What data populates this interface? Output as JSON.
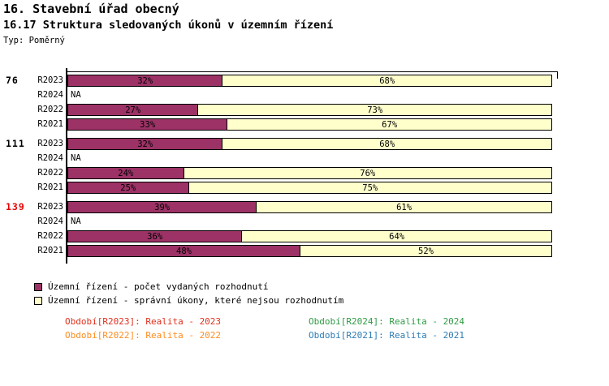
{
  "header": {
    "title_line1": "16. Stavební úřad obecný",
    "title_line2": "16.17 Struktura sledovaných úkonů v územním řízení",
    "type_label": "Typ: Poměrný"
  },
  "chart_data": {
    "type": "bar",
    "orientation": "horizontal",
    "stacked": true,
    "unit": "%",
    "xlim": [
      0,
      100
    ],
    "grid": false,
    "row_order": [
      "R2023",
      "R2024",
      "R2022",
      "R2021"
    ],
    "series": [
      {
        "name": "Územní řízení - počet vydaných rozhodnutí",
        "color": "#9c3266"
      },
      {
        "name": "Územní řízení - správní úkony, které nejsou rozhodnutím",
        "color": "#ffffcc"
      }
    ],
    "groups": [
      {
        "total": "76",
        "total_color": "#000000",
        "rows": [
          {
            "label": "R2023",
            "values": [
              32,
              68
            ]
          },
          {
            "label": "R2024",
            "na": "NA"
          },
          {
            "label": "R2022",
            "values": [
              27,
              73
            ]
          },
          {
            "label": "R2021",
            "values": [
              33,
              67
            ]
          }
        ]
      },
      {
        "total": "111",
        "total_color": "#000000",
        "rows": [
          {
            "label": "R2023",
            "values": [
              32,
              68
            ]
          },
          {
            "label": "R2024",
            "na": "NA"
          },
          {
            "label": "R2022",
            "values": [
              24,
              76
            ]
          },
          {
            "label": "R2021",
            "values": [
              25,
              75
            ]
          }
        ]
      },
      {
        "total": "139",
        "total_color": "#e60000",
        "rows": [
          {
            "label": "R2023",
            "values": [
              39,
              61
            ]
          },
          {
            "label": "R2024",
            "na": "NA"
          },
          {
            "label": "R2022",
            "values": [
              36,
              64
            ]
          },
          {
            "label": "R2021",
            "values": [
              48,
              52
            ]
          }
        ]
      }
    ]
  },
  "legend": {
    "items": [
      {
        "label": "Územní řízení - počet vydaných rozhodnutí",
        "color": "#9c3266"
      },
      {
        "label": "Územní řízení - správní úkony, které nejsou rozhodnutím",
        "color": "#ffffcc"
      }
    ]
  },
  "footer": {
    "items": [
      {
        "label": "Období[R2023]: Realita - 2023",
        "color": "#e0301c"
      },
      {
        "label": "Období[R2024]: Realita - 2024",
        "color": "#2e9b44"
      },
      {
        "label": "Období[R2022]: Realita - 2022",
        "color": "#ff8c1e"
      },
      {
        "label": "Období[R2021]: Realita - 2021",
        "color": "#2d7cb5"
      }
    ]
  }
}
